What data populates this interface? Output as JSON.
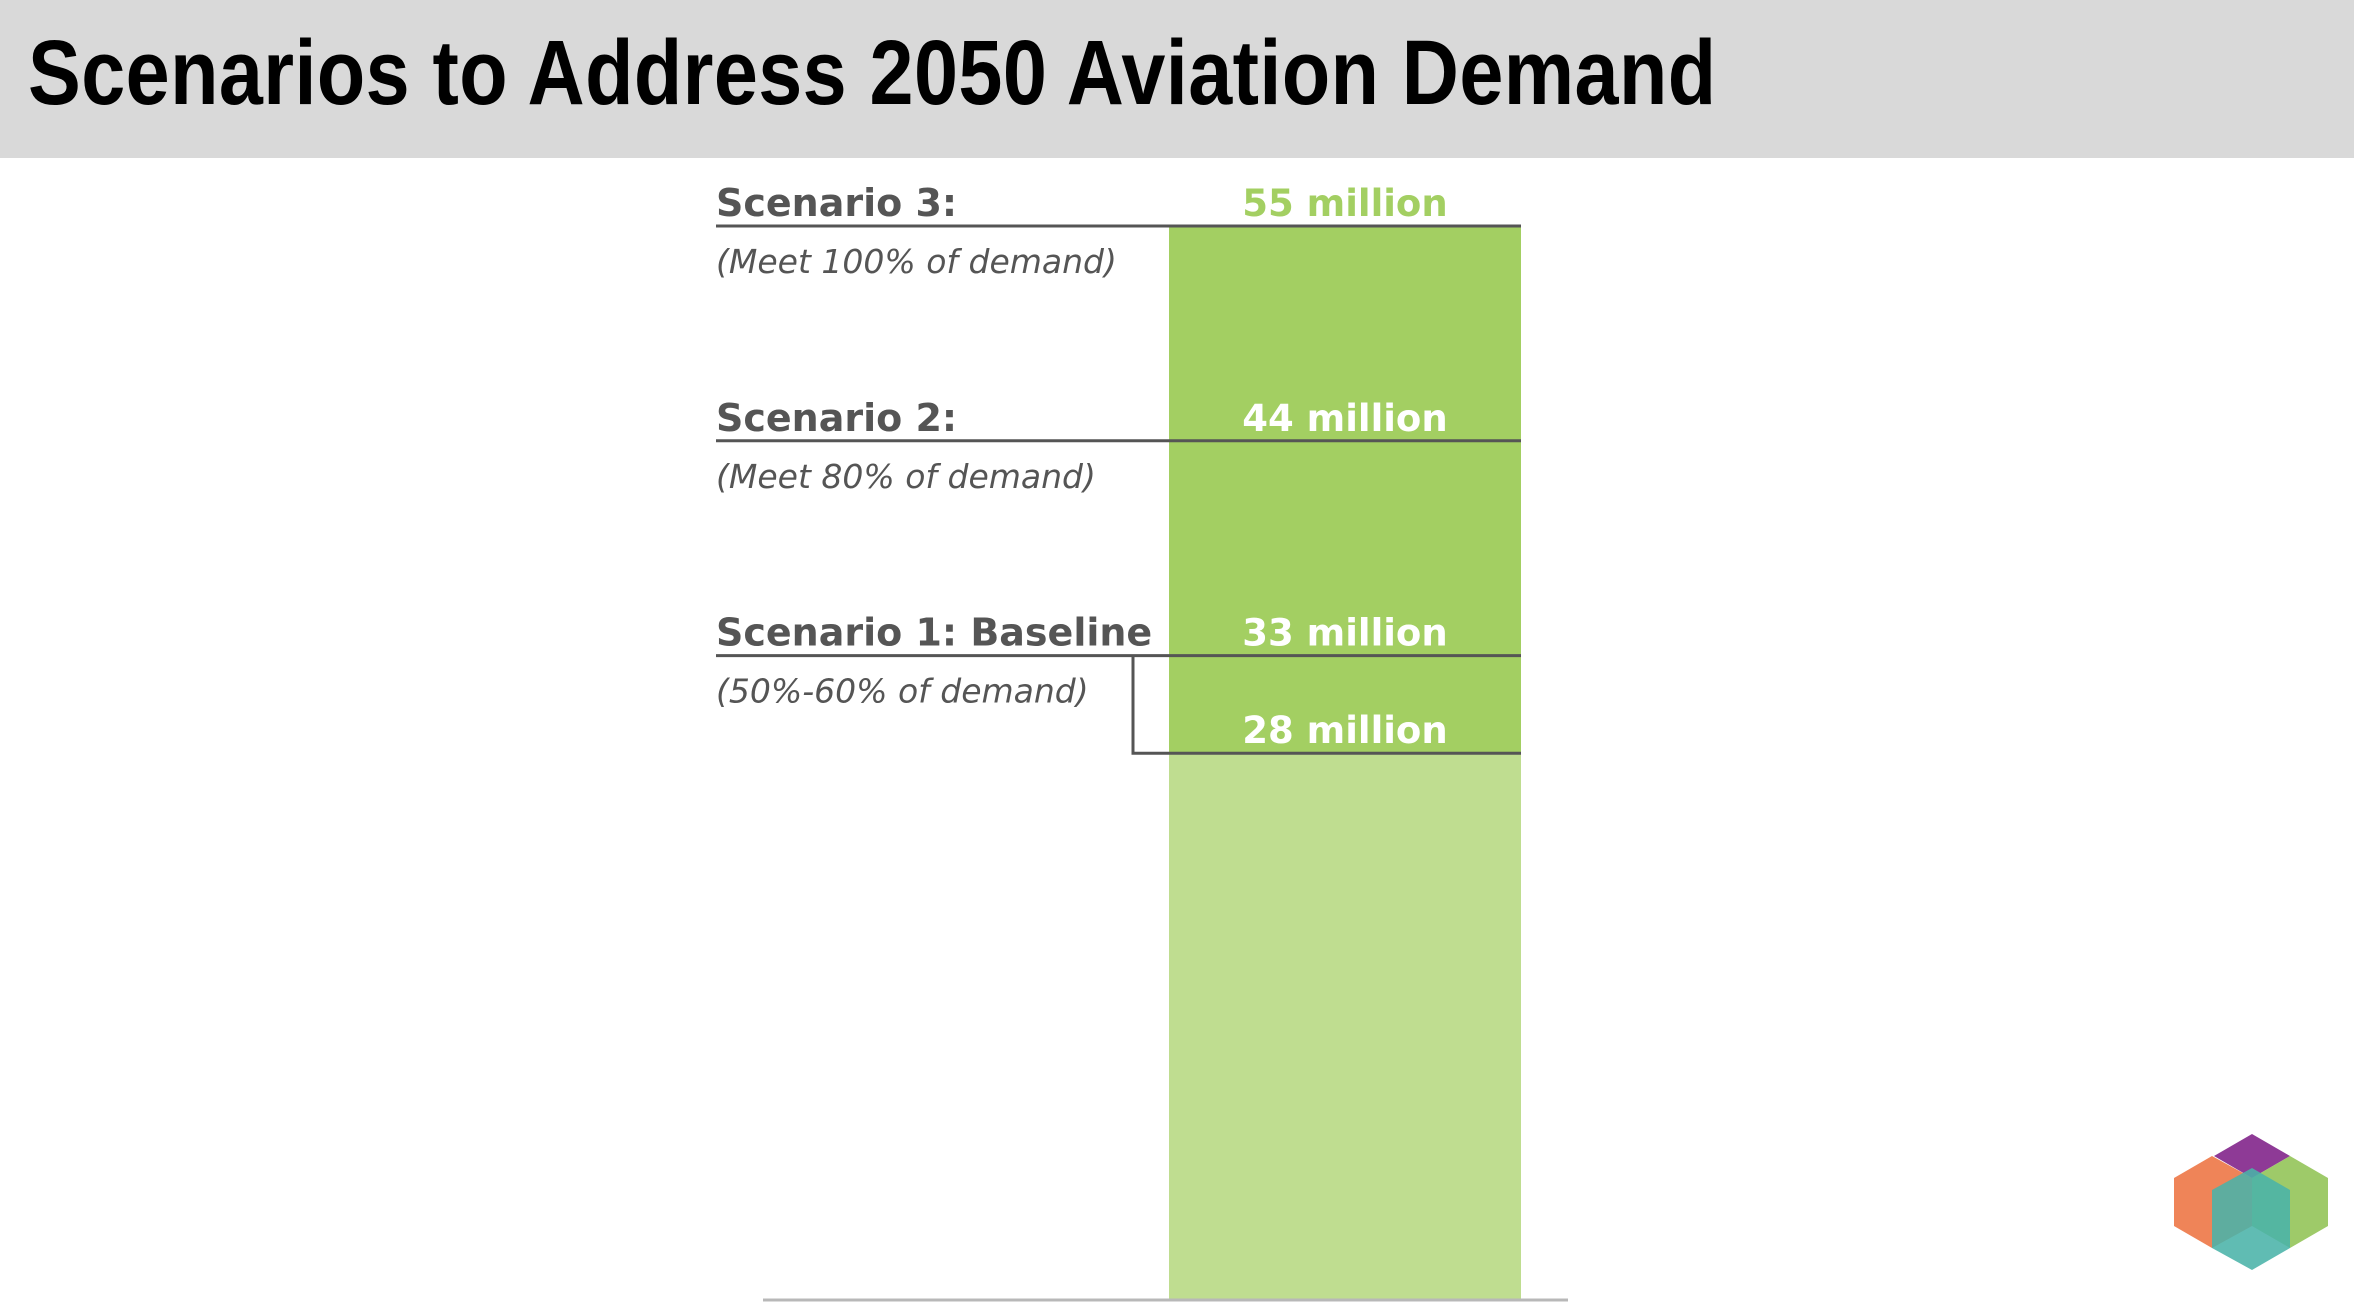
{
  "header": {
    "title": "Scenarios to Address 2050 Aviation Demand"
  },
  "colors": {
    "header_bg": "#d9d9d9",
    "bar_dark_green": "#a3cf62",
    "bar_light_green": "#bfdd90",
    "text_gray": "#555555",
    "top_value_green": "#a3cf62",
    "white": "#ffffff"
  },
  "chart_data": {
    "type": "bar",
    "unit": "million",
    "ylim": [
      0,
      55
    ],
    "grid": false,
    "segments": [
      {
        "from": 0,
        "to": 28,
        "color": "light-green"
      },
      {
        "from": 28,
        "to": 55,
        "color": "dark-green"
      }
    ],
    "levels": [
      {
        "value": 55,
        "label": "55 million",
        "scenario": "Scenario 3:",
        "description": "(Meet 100% of demand)"
      },
      {
        "value": 44,
        "label": "44 million",
        "scenario": "Scenario 2:",
        "description": "(Meet 80% of demand)"
      },
      {
        "value": 33,
        "label": "33 million",
        "scenario": "Scenario 1: Baseline",
        "description": "(50%-60% of demand)"
      },
      {
        "value": 28,
        "label": "28 million",
        "scenario": "",
        "description": ""
      }
    ]
  },
  "logo": {
    "icon": "hexagon-cube-logo-icon",
    "colors": [
      "#8e3a96",
      "#ee7a4a",
      "#96c65c",
      "#4ab3a8"
    ]
  }
}
